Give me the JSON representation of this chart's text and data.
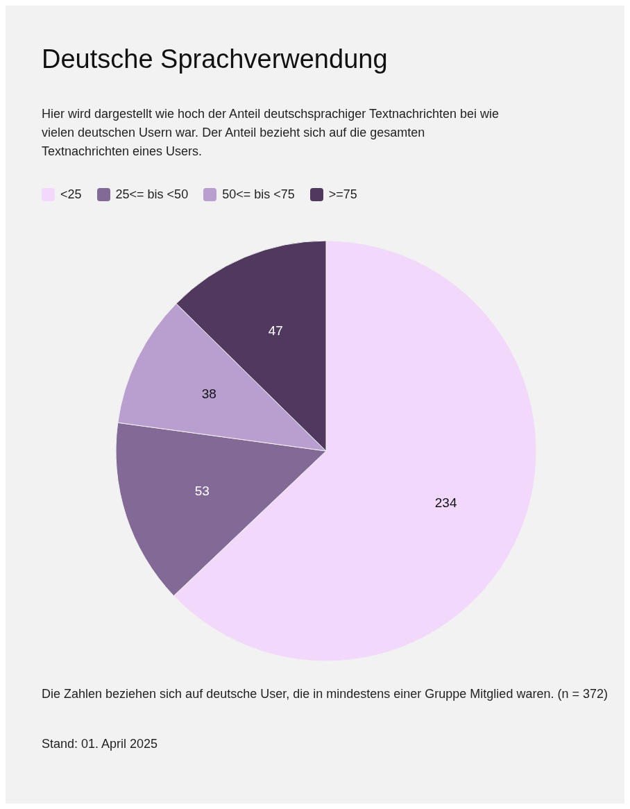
{
  "chart_data": {
    "type": "pie",
    "title": "Deutsche Sprachverwendung",
    "subtitle": "Hier wird dargestellt wie hoch der Anteil deutschsprachiger Textnachrichten bei wie vielen deutschen Usern war. Der Anteil bezieht sich auf die gesamten Textnachrichten eines Users.",
    "categories": [
      "<25",
      "25<= bis <50",
      "50<= bis <75",
      ">=75"
    ],
    "values": [
      234,
      53,
      38,
      47
    ],
    "colors": [
      "#f2d9fc",
      "#826996",
      "#b99fd0",
      "#50385f"
    ],
    "data_labels": true,
    "legend": "top left",
    "annotations": [
      "Die Zahlen beziehen sich auf deutsche User, die in mindestens einer Gruppe Mitglied waren. (n = 372)",
      "Stand: 01. April 2025"
    ]
  }
}
